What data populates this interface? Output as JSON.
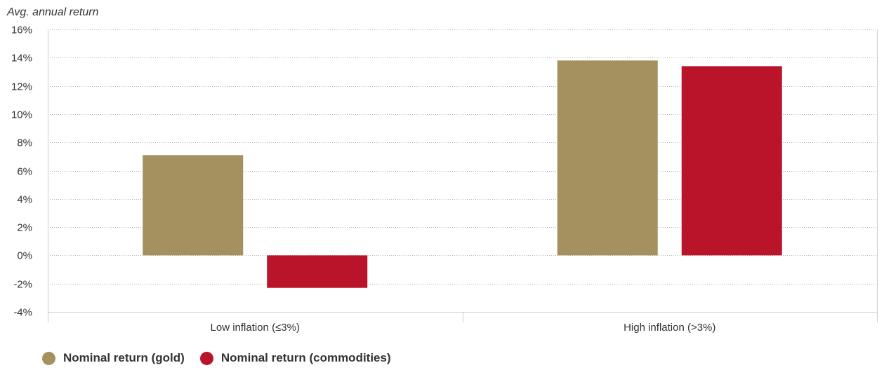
{
  "chart_data": {
    "type": "bar",
    "ylabel": "Avg. annual return",
    "xlabel": "",
    "categories": [
      "Low inflation (≤3%)",
      "High inflation (>3%)"
    ],
    "series": [
      {
        "name": "Nominal return (gold)",
        "color": "#A59160",
        "values": [
          7.1,
          13.8
        ]
      },
      {
        "name": "Nominal return (commodities)",
        "color": "#BA142B",
        "values": [
          -2.3,
          13.4
        ]
      }
    ],
    "ylim": [
      -4,
      16
    ],
    "yticks": [
      "-4%",
      "-2%",
      "0%",
      "2%",
      "4%",
      "6%",
      "8%",
      "10%",
      "12%",
      "14%",
      "16%"
    ],
    "grid": true,
    "legend_position": "bottom-left"
  }
}
